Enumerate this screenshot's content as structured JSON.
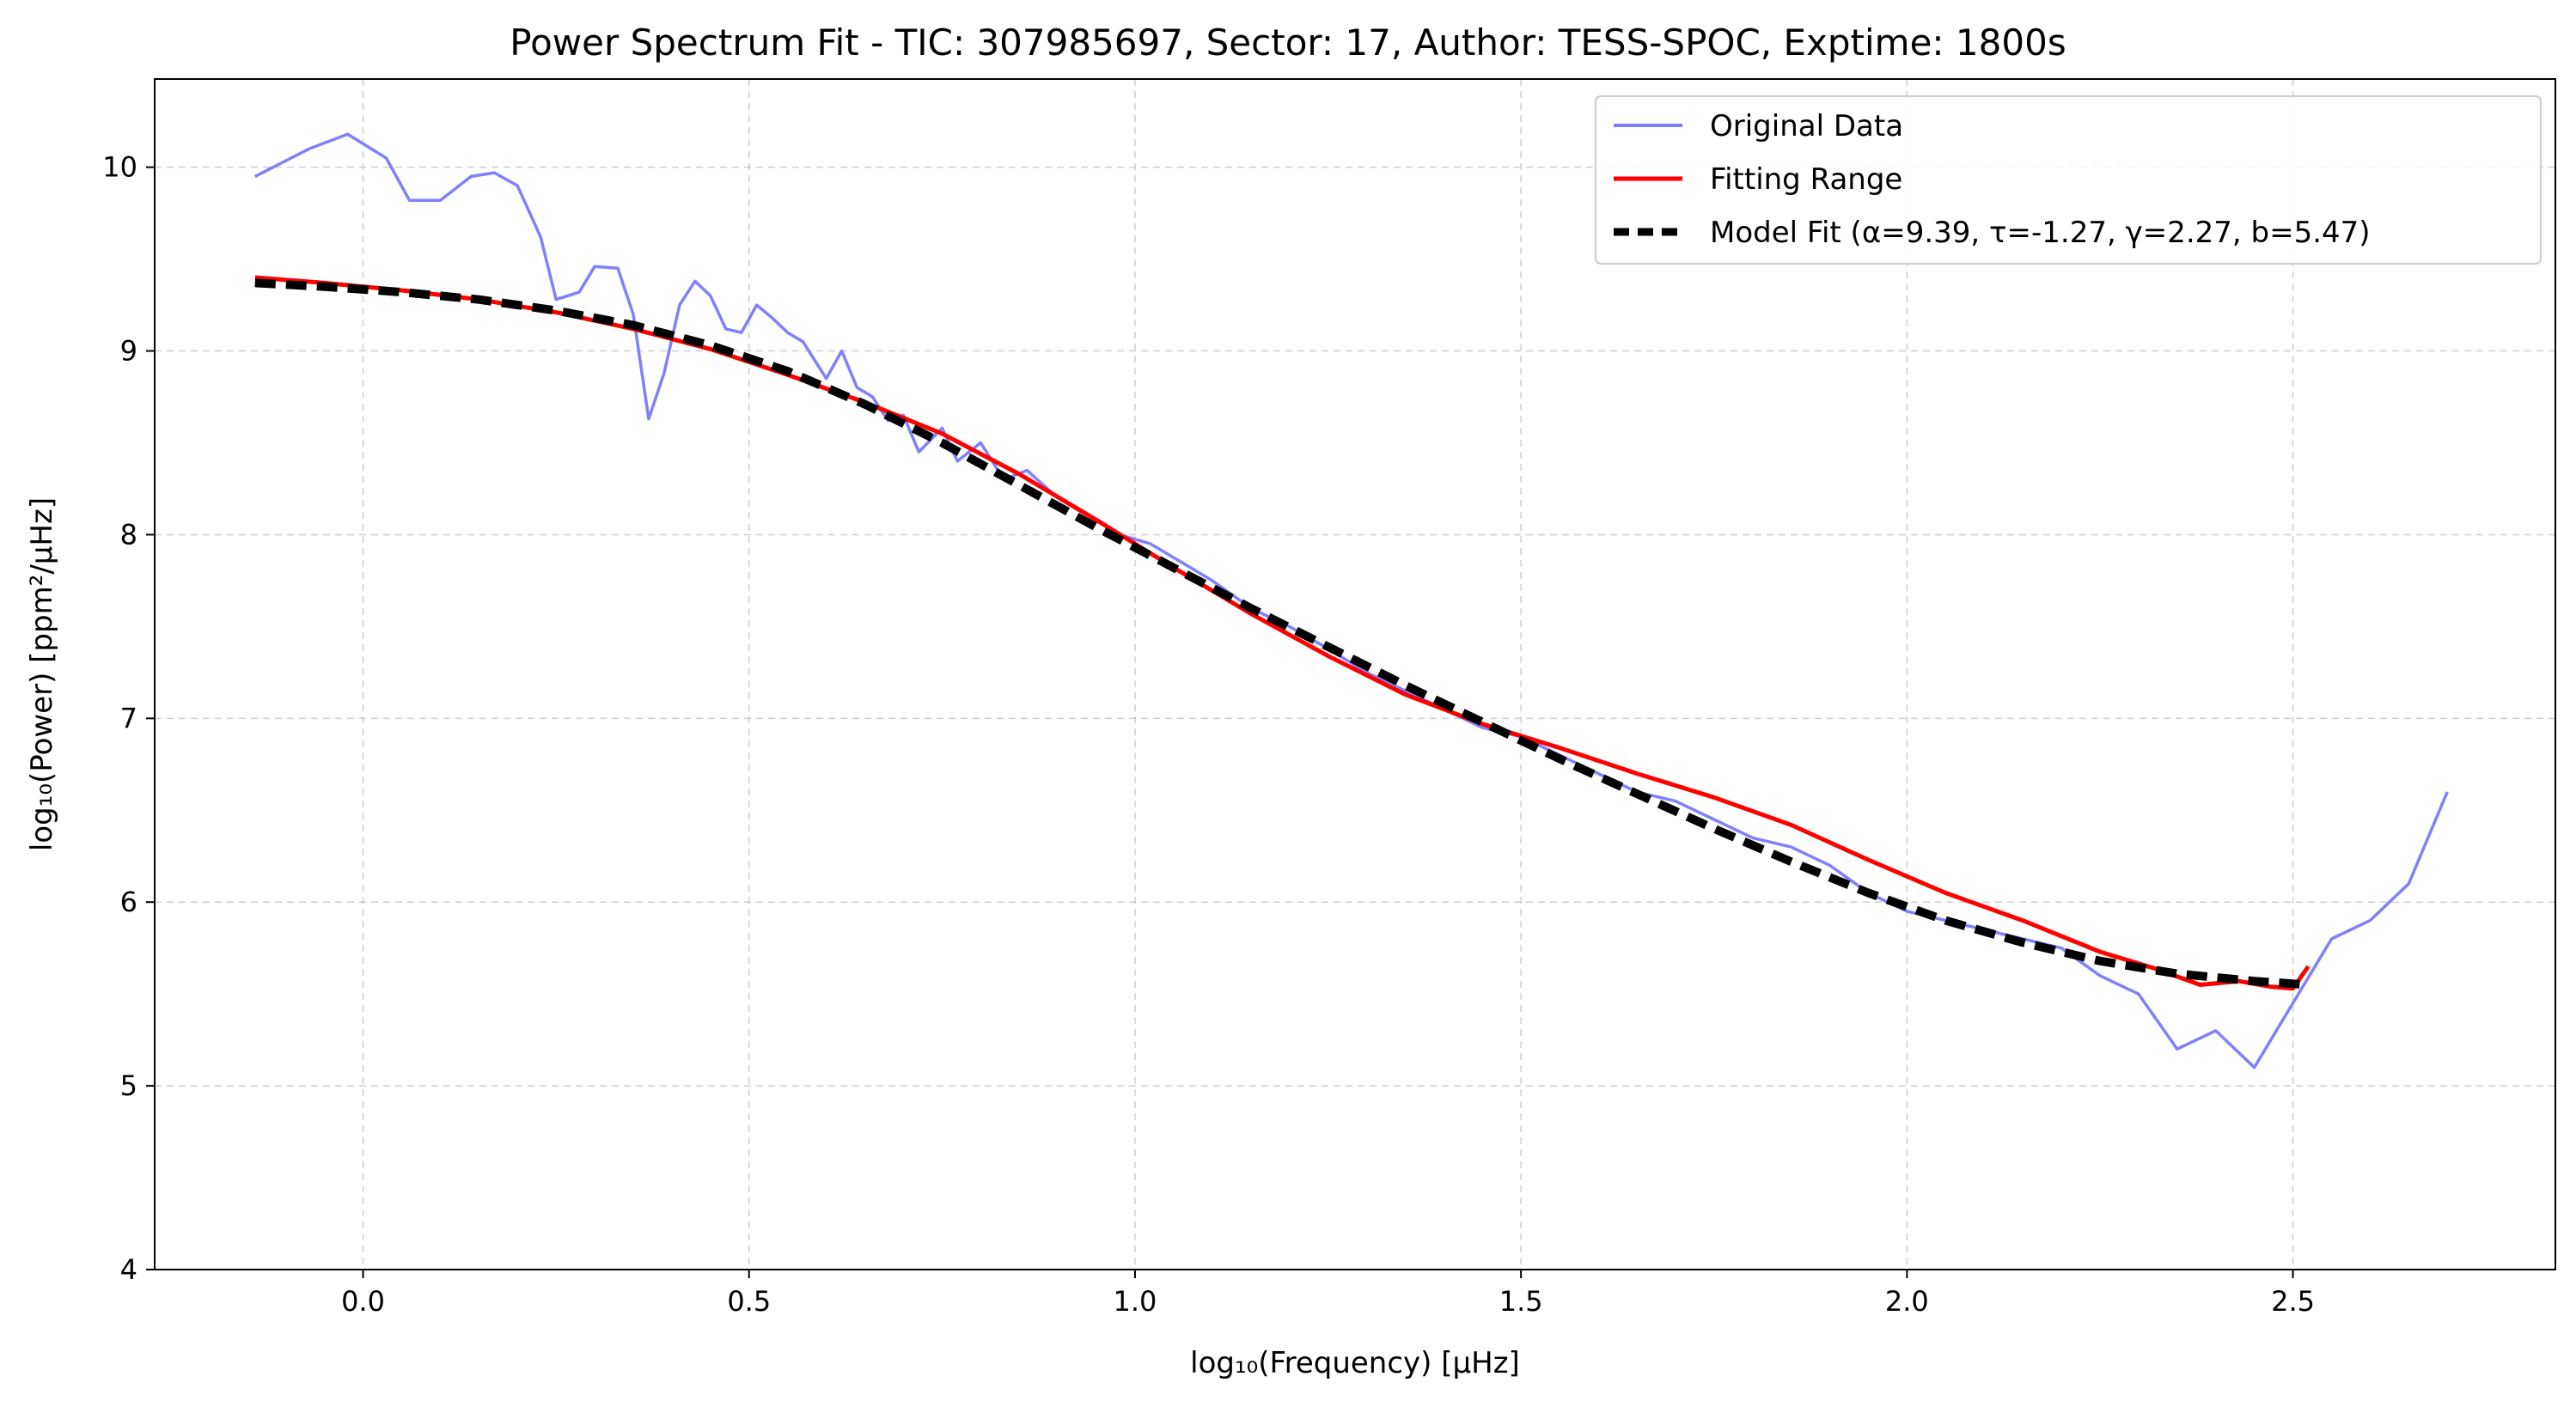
{
  "colors": {
    "original": "#8080ff",
    "fit_range": "#ff0000",
    "model": "#000000",
    "grid": "#b0b0b0",
    "legend_border": "#cccccc"
  },
  "chart_data": {
    "type": "line",
    "title": "Power Spectrum Fit - TIC: 307985697, Sector: 17, Author: TESS-SPOC, Exptime: 1800s",
    "xlabel": "log₁₀(Frequency) [μHz]",
    "ylabel": "log₁₀(Power) [ppm²/μHz]",
    "xlim": [
      -0.27,
      2.84
    ],
    "ylim": [
      4.0,
      10.48
    ],
    "xticks": [
      0.0,
      0.5,
      1.0,
      1.5,
      2.0,
      2.5
    ],
    "xtick_labels": [
      "0.0",
      "0.5",
      "1.0",
      "1.5",
      "2.0",
      "2.5"
    ],
    "yticks": [
      4,
      5,
      6,
      7,
      8,
      9,
      10
    ],
    "ytick_labels": [
      "4",
      "5",
      "6",
      "7",
      "8",
      "9",
      "10"
    ],
    "grid": true,
    "legend_position": "top-right",
    "series": [
      {
        "name": "Original Data",
        "style": "line",
        "x": [
          -0.14,
          -0.07,
          -0.02,
          0.03,
          0.06,
          0.1,
          0.14,
          0.17,
          0.2,
          0.23,
          0.25,
          0.28,
          0.3,
          0.33,
          0.35,
          0.37,
          0.39,
          0.41,
          0.43,
          0.45,
          0.47,
          0.49,
          0.51,
          0.53,
          0.55,
          0.57,
          0.6,
          0.62,
          0.64,
          0.66,
          0.68,
          0.7,
          0.72,
          0.75,
          0.77,
          0.8,
          0.83,
          0.86,
          0.9,
          0.94,
          0.98,
          1.02,
          1.06,
          1.1,
          1.15,
          1.2,
          1.25,
          1.3,
          1.35,
          1.4,
          1.45,
          1.5,
          1.55,
          1.6,
          1.65,
          1.7,
          1.75,
          1.8,
          1.85,
          1.9,
          1.95,
          2.0,
          2.05,
          2.1,
          2.15,
          2.2,
          2.25,
          2.3,
          2.35,
          2.4,
          2.45,
          2.5,
          2.55,
          2.6,
          2.65,
          2.7
        ],
        "y": [
          9.95,
          10.1,
          10.18,
          10.05,
          9.82,
          9.82,
          9.95,
          9.97,
          9.9,
          9.62,
          9.28,
          9.32,
          9.46,
          9.45,
          9.2,
          8.63,
          8.88,
          9.25,
          9.38,
          9.3,
          9.12,
          9.1,
          9.25,
          9.18,
          9.1,
          9.05,
          8.85,
          9.0,
          8.8,
          8.75,
          8.62,
          8.65,
          8.45,
          8.58,
          8.4,
          8.5,
          8.3,
          8.35,
          8.2,
          8.1,
          8.0,
          7.95,
          7.85,
          7.75,
          7.6,
          7.5,
          7.38,
          7.25,
          7.15,
          7.05,
          6.95,
          6.9,
          6.8,
          6.7,
          6.6,
          6.55,
          6.45,
          6.35,
          6.3,
          6.2,
          6.05,
          5.95,
          5.9,
          5.85,
          5.8,
          5.75,
          5.6,
          5.5,
          5.2,
          5.3,
          5.1,
          5.45,
          5.8,
          5.9,
          6.1,
          6.6
        ]
      },
      {
        "name": "Fitting Range",
        "style": "line",
        "x": [
          -0.14,
          -0.05,
          0.05,
          0.15,
          0.25,
          0.35,
          0.45,
          0.55,
          0.65,
          0.75,
          0.85,
          0.95,
          1.05,
          1.15,
          1.25,
          1.35,
          1.45,
          1.55,
          1.65,
          1.75,
          1.85,
          1.95,
          2.05,
          2.15,
          2.25,
          2.32,
          2.38,
          2.43,
          2.47,
          2.5,
          2.52
        ],
        "y": [
          9.4,
          9.37,
          9.33,
          9.28,
          9.21,
          9.12,
          9.01,
          8.87,
          8.72,
          8.55,
          8.33,
          8.08,
          7.82,
          7.57,
          7.34,
          7.13,
          6.97,
          6.84,
          6.7,
          6.57,
          6.42,
          6.23,
          6.05,
          5.9,
          5.73,
          5.64,
          5.55,
          5.57,
          5.54,
          5.53,
          5.65
        ]
      },
      {
        "name": "Model Fit (α=9.39, τ=-1.27, γ=2.27, b=5.47)",
        "style": "dashed",
        "x": [
          -0.14,
          -0.05,
          0.05,
          0.15,
          0.25,
          0.35,
          0.45,
          0.55,
          0.65,
          0.75,
          0.85,
          0.95,
          1.05,
          1.15,
          1.25,
          1.35,
          1.45,
          1.55,
          1.65,
          1.75,
          1.85,
          1.95,
          2.05,
          2.15,
          2.25,
          2.35,
          2.45,
          2.52
        ],
        "y": [
          9.37,
          9.35,
          9.32,
          9.28,
          9.22,
          9.14,
          9.03,
          8.89,
          8.71,
          8.5,
          8.27,
          8.04,
          7.82,
          7.6,
          7.39,
          7.18,
          6.98,
          6.78,
          6.59,
          6.4,
          6.22,
          6.05,
          5.9,
          5.78,
          5.68,
          5.61,
          5.57,
          5.55
        ]
      }
    ]
  }
}
